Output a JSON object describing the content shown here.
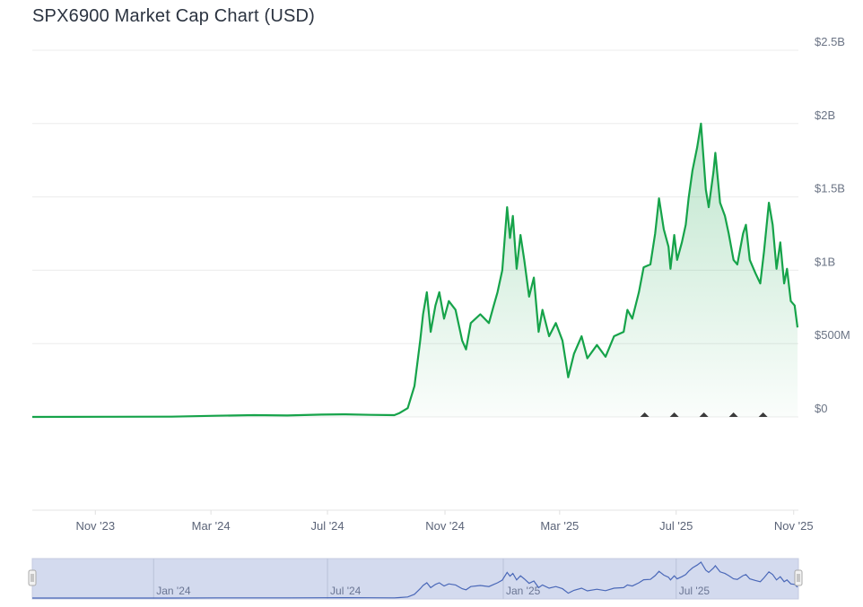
{
  "chart_data": {
    "type": "area",
    "title": "SPX6900 Market Cap Chart (USD)",
    "xlabel": "",
    "ylabel": "",
    "ylim": [
      0,
      2500000000
    ],
    "xlim": [
      "2023-08-27",
      "2025-11-05"
    ],
    "grid": true,
    "legend": "none",
    "y_ticks": [
      {
        "value": 0,
        "label": "$0"
      },
      {
        "value": 500000000,
        "label": "$500M"
      },
      {
        "value": 1000000000,
        "label": "$1B"
      },
      {
        "value": 1500000000,
        "label": "$1.5B"
      },
      {
        "value": 2000000000,
        "label": "$2B"
      },
      {
        "value": 2500000000,
        "label": "$2.5B"
      }
    ],
    "x_ticks": [
      {
        "date": "2023-11-01",
        "label": "Nov '23"
      },
      {
        "date": "2024-03-01",
        "label": "Mar '24"
      },
      {
        "date": "2024-07-01",
        "label": "Jul '24"
      },
      {
        "date": "2024-11-01",
        "label": "Nov '24"
      },
      {
        "date": "2025-03-01",
        "label": "Mar '25"
      },
      {
        "date": "2025-07-01",
        "label": "Jul '25"
      },
      {
        "date": "2025-11-01",
        "label": "Nov '25"
      }
    ],
    "navigator_ticks": [
      {
        "date": "2024-01-01",
        "label": "Jan '24"
      },
      {
        "date": "2024-07-01",
        "label": "Jul '24"
      },
      {
        "date": "2025-01-01",
        "label": "Jan '25"
      },
      {
        "date": "2025-07-01",
        "label": "Jul '25"
      }
    ],
    "event_markers": [
      "2025-05-29",
      "2025-06-29",
      "2025-07-30",
      "2025-08-30",
      "2025-09-30"
    ],
    "colors": {
      "line": "#16a34a",
      "fill": "#16a34a",
      "navigator_line": "#4a68b8",
      "navigator_bg": "#d3daee",
      "marker": "#3a3a3a",
      "grid": "#ececec"
    },
    "series": [
      {
        "x": [
          "2023-08-27",
          "2023-11-15",
          "2024-01-20",
          "2024-03-06",
          "2024-04-15",
          "2024-05-20",
          "2024-06-25",
          "2024-07-20",
          "2024-08-15",
          "2024-09-09",
          "2024-09-14",
          "2024-09-23",
          "2024-09-30",
          "2024-10-06",
          "2024-10-09",
          "2024-10-13",
          "2024-10-17",
          "2024-10-22",
          "2024-10-26",
          "2024-10-31",
          "2024-11-05",
          "2024-11-12",
          "2024-11-19",
          "2024-11-23",
          "2024-11-28",
          "2024-12-08",
          "2024-12-17",
          "2024-12-22",
          "2024-12-26",
          "2024-12-31",
          "2025-01-05",
          "2025-01-08",
          "2025-01-11",
          "2025-01-15",
          "2025-01-19",
          "2025-01-23",
          "2025-01-28",
          "2025-02-02",
          "2025-02-07",
          "2025-02-11",
          "2025-02-18",
          "2025-02-25",
          "2025-03-04",
          "2025-03-10",
          "2025-03-16",
          "2025-03-24",
          "2025-03-30",
          "2025-04-09",
          "2025-04-18",
          "2025-04-27",
          "2025-05-07",
          "2025-05-11",
          "2025-05-16",
          "2025-05-23",
          "2025-05-28",
          "2025-06-04",
          "2025-06-09",
          "2025-06-13",
          "2025-06-18",
          "2025-06-23",
          "2025-06-25",
          "2025-06-29",
          "2025-07-02",
          "2025-07-07",
          "2025-07-11",
          "2025-07-14",
          "2025-07-18",
          "2025-07-23",
          "2025-07-27",
          "2025-08-01",
          "2025-08-04",
          "2025-08-09",
          "2025-08-11",
          "2025-08-16",
          "2025-08-21",
          "2025-08-25",
          "2025-08-30",
          "2025-09-03",
          "2025-09-09",
          "2025-09-12",
          "2025-09-16",
          "2025-09-22",
          "2025-09-27",
          "2025-10-01",
          "2025-10-06",
          "2025-10-10",
          "2025-10-14",
          "2025-10-18",
          "2025-10-22",
          "2025-10-25",
          "2025-10-29",
          "2025-11-02",
          "2025-11-05"
        ],
        "y": [
          0,
          1000000,
          2000000,
          8000000,
          12000000,
          10000000,
          16000000,
          18000000,
          14000000,
          12000000,
          25000000,
          60000000,
          210000000,
          520000000,
          700000000,
          850000000,
          580000000,
          760000000,
          850000000,
          670000000,
          790000000,
          730000000,
          520000000,
          460000000,
          640000000,
          700000000,
          640000000,
          760000000,
          850000000,
          1000000000,
          1430000000,
          1220000000,
          1370000000,
          1010000000,
          1240000000,
          1070000000,
          820000000,
          950000000,
          580000000,
          730000000,
          550000000,
          640000000,
          520000000,
          270000000,
          430000000,
          550000000,
          400000000,
          490000000,
          410000000,
          550000000,
          580000000,
          730000000,
          670000000,
          850000000,
          1020000000,
          1040000000,
          1250000000,
          1490000000,
          1280000000,
          1160000000,
          1010000000,
          1240000000,
          1070000000,
          1190000000,
          1310000000,
          1490000000,
          1680000000,
          1840000000,
          2000000000,
          1550000000,
          1430000000,
          1670000000,
          1800000000,
          1460000000,
          1370000000,
          1250000000,
          1070000000,
          1040000000,
          1250000000,
          1310000000,
          1070000000,
          980000000,
          910000000,
          1130000000,
          1460000000,
          1310000000,
          1010000000,
          1190000000,
          910000000,
          1010000000,
          790000000,
          760000000,
          610000000
        ]
      }
    ]
  }
}
